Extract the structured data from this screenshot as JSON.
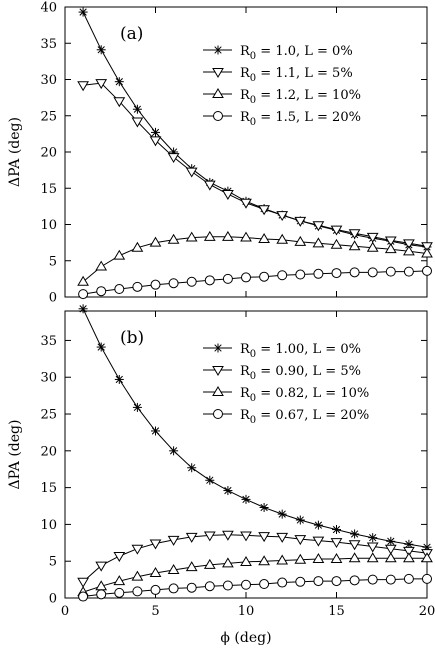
{
  "chart_data": [
    {
      "type": "line",
      "panel_label": "(a)",
      "xlabel": "",
      "ylabel": "ΔPA (deg)",
      "xlim": [
        0,
        20
      ],
      "ylim": [
        0,
        40
      ],
      "yticks": [
        0,
        5,
        10,
        15,
        20,
        25,
        30,
        35,
        40
      ],
      "xticks": [
        0,
        5,
        10,
        15,
        20
      ],
      "grid": false,
      "legend_position": "top-right",
      "x": [
        1,
        2,
        3,
        4,
        5,
        6,
        7,
        8,
        9,
        10,
        11,
        12,
        13,
        14,
        15,
        16,
        17,
        18,
        19,
        20
      ],
      "series": [
        {
          "name": "R0 = 1.0, L = 0%",
          "name_parts": [
            "R",
            "0",
            " = 1.0,  L = 0%"
          ],
          "marker": "star",
          "values": [
            39.3,
            34.1,
            29.7,
            25.9,
            22.7,
            20.0,
            17.7,
            15.8,
            14.6,
            13.2,
            12.2,
            11.3,
            10.5,
            9.8,
            9.2,
            8.6,
            8.1,
            7.7,
            7.2,
            6.9
          ]
        },
        {
          "name": "R0 = 1.1, L = 5%",
          "name_parts": [
            "R",
            "0",
            " = 1.1,  L = 5%"
          ],
          "marker": "triangle-down",
          "values": [
            29.2,
            29.5,
            27.0,
            24.2,
            21.6,
            19.3,
            17.3,
            15.5,
            14.2,
            13.0,
            12.1,
            11.3,
            10.5,
            9.9,
            9.3,
            8.8,
            8.3,
            7.8,
            7.4,
            7.0
          ]
        },
        {
          "name": "R0 = 1.2, L = 10%",
          "name_parts": [
            "R",
            "0",
            " = 1.2,  L = 10%"
          ],
          "marker": "triangle-up",
          "values": [
            2.1,
            4.2,
            5.7,
            6.8,
            7.5,
            7.9,
            8.2,
            8.3,
            8.3,
            8.2,
            8.0,
            7.9,
            7.6,
            7.4,
            7.2,
            7.0,
            6.8,
            6.6,
            6.3,
            6.0
          ]
        },
        {
          "name": "R0 = 1.5, L = 20%",
          "name_parts": [
            "R",
            "0",
            " = 1.5,  L = 20%"
          ],
          "marker": "circle",
          "values": [
            0.4,
            0.8,
            1.1,
            1.4,
            1.7,
            1.9,
            2.1,
            2.3,
            2.5,
            2.7,
            2.8,
            3.0,
            3.1,
            3.2,
            3.3,
            3.4,
            3.4,
            3.5,
            3.5,
            3.6
          ]
        }
      ]
    },
    {
      "type": "line",
      "panel_label": "(b)",
      "xlabel": "ϕ (deg)",
      "ylabel": "ΔPA (deg)",
      "xlim": [
        0,
        20
      ],
      "ylim": [
        0,
        39
      ],
      "yticks": [
        0,
        5,
        10,
        15,
        20,
        25,
        30,
        35
      ],
      "xticks": [
        0,
        5,
        10,
        15,
        20
      ],
      "grid": false,
      "legend_position": "top-right",
      "x": [
        1,
        2,
        3,
        4,
        5,
        6,
        7,
        8,
        9,
        10,
        11,
        12,
        13,
        14,
        15,
        16,
        17,
        18,
        19,
        20
      ],
      "series": [
        {
          "name": "R0 = 1.00, L = 0%",
          "name_parts": [
            "R",
            "0",
            " = 1.00,  L = 0%"
          ],
          "marker": "star",
          "values": [
            39.3,
            34.1,
            29.7,
            25.9,
            22.7,
            20.0,
            17.7,
            16.0,
            14.6,
            13.4,
            12.3,
            11.4,
            10.6,
            9.9,
            9.3,
            8.7,
            8.2,
            7.7,
            7.3,
            6.9
          ]
        },
        {
          "name": "R0 = 0.90, L = 5%",
          "name_parts": [
            "R",
            "0",
            " = 0.90,  L = 5%"
          ],
          "marker": "triangle-down",
          "values": [
            2.2,
            4.4,
            5.7,
            6.7,
            7.4,
            7.9,
            8.3,
            8.5,
            8.6,
            8.5,
            8.4,
            8.3,
            8.0,
            7.8,
            7.6,
            7.3,
            7.0,
            6.7,
            6.4,
            6.1
          ]
        },
        {
          "name": "R0 = 0.82, L = 10%",
          "name_parts": [
            "R",
            "0",
            " = 0.82,  L = 10%"
          ],
          "marker": "triangle-up",
          "values": [
            0.8,
            1.6,
            2.3,
            2.9,
            3.4,
            3.8,
            4.2,
            4.5,
            4.7,
            4.9,
            5.0,
            5.1,
            5.2,
            5.3,
            5.3,
            5.4,
            5.4,
            5.4,
            5.4,
            5.4
          ]
        },
        {
          "name": "R0 = 0.67, L = 20%",
          "name_parts": [
            "R",
            "0",
            " = 0.67,  L = 20%"
          ],
          "marker": "circle",
          "values": [
            0.2,
            0.5,
            0.7,
            0.9,
            1.1,
            1.3,
            1.4,
            1.6,
            1.7,
            1.8,
            1.9,
            2.1,
            2.2,
            2.3,
            2.3,
            2.4,
            2.5,
            2.5,
            2.6,
            2.6
          ]
        }
      ]
    }
  ]
}
